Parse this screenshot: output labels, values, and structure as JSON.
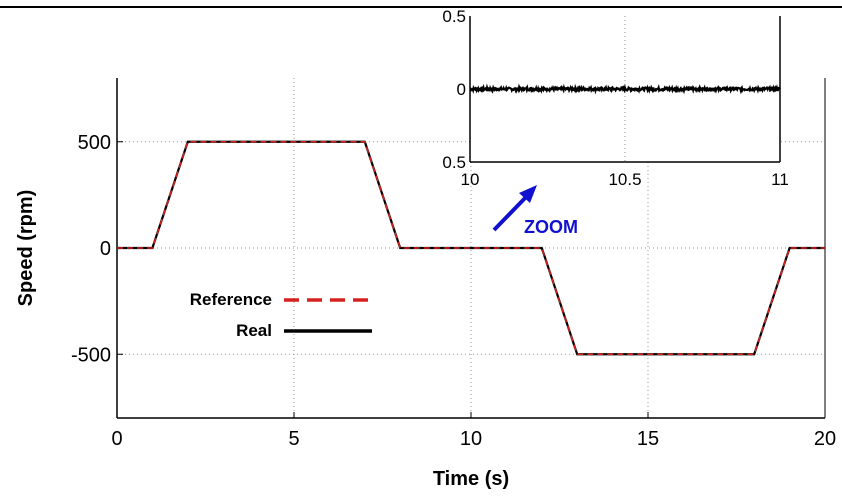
{
  "chart_data": [
    {
      "type": "line",
      "xlabel": "Time (s)",
      "ylabel": "Speed (rpm)",
      "xlim": [
        0,
        20
      ],
      "ylim": [
        -800,
        800
      ],
      "xticks": [
        "0",
        "5",
        "10",
        "15",
        "20"
      ],
      "yticks": [
        "500",
        "0",
        "-500"
      ],
      "grid": true,
      "legend_position": "middle-left",
      "series": [
        {
          "name": "Reference",
          "style": "dashed",
          "color": "#d62020",
          "x": [
            0,
            1,
            2,
            7,
            8,
            12,
            13,
            18,
            19,
            20
          ],
          "y": [
            0,
            0,
            500,
            500,
            0,
            0,
            -500,
            -500,
            0,
            0
          ]
        },
        {
          "name": "Real",
          "style": "solid",
          "color": "#000000",
          "x": [
            0,
            1,
            2,
            7,
            8,
            12,
            13,
            18,
            19,
            20
          ],
          "y": [
            0,
            0,
            500,
            500,
            0,
            0,
            -500,
            -500,
            0,
            0
          ]
        }
      ]
    },
    {
      "type": "line",
      "xlim": [
        10,
        11
      ],
      "ylim": [
        -0.5,
        0.5
      ],
      "xticks": [
        "10",
        "10.5",
        "11"
      ],
      "yticks": [
        "0.5",
        "0",
        "0.5"
      ],
      "grid": true,
      "series": [
        {
          "x": [
            10,
            11
          ],
          "y": [
            0,
            0
          ],
          "color": "#000000",
          "noise_amplitude": 0.01
        }
      ]
    }
  ],
  "annotation": {
    "text": "ZOOM",
    "color": "#1010d0"
  }
}
